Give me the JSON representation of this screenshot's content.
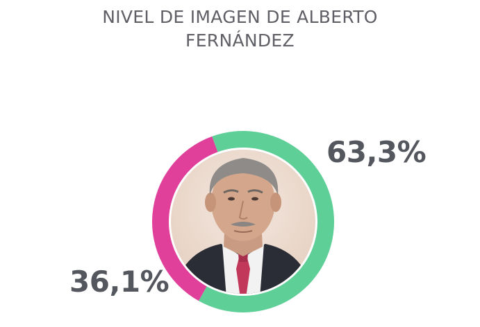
{
  "chart_data": {
    "type": "pie",
    "title_line1": "NIVEL DE IMAGEN DE ALBERTO",
    "title_line2": "FERNÁNDEZ",
    "slices": [
      {
        "label": "63,3%",
        "value": 63.3,
        "color": "#5fcf98"
      },
      {
        "label": "36,1%",
        "value": 36.1,
        "color": "#e0409a"
      }
    ],
    "center_image": "portrait-photo"
  }
}
